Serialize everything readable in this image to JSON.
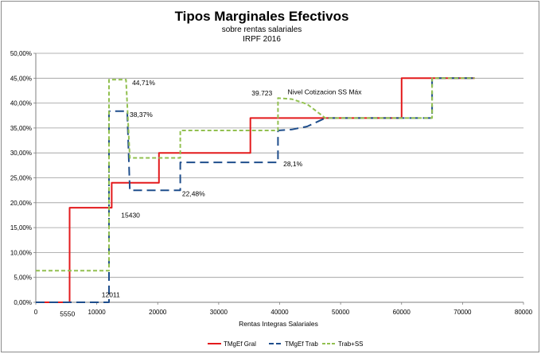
{
  "chart_data": {
    "type": "line",
    "title": "Tipos Marginales Efectivos",
    "subtitle_1": "sobre rentas salariales",
    "subtitle_2": "IRPF 2016",
    "xlabel": "Rentas Integras Salariales",
    "ylabel": "",
    "xlim": [
      0,
      80000
    ],
    "ylim": [
      0,
      0.5
    ],
    "x_ticks": [
      0,
      10000,
      20000,
      30000,
      40000,
      50000,
      60000,
      70000,
      80000
    ],
    "y_ticks": [
      {
        "v": 0.0,
        "label": "0,00%"
      },
      {
        "v": 0.05,
        "label": "5,00%"
      },
      {
        "v": 0.1,
        "label": "10,00%"
      },
      {
        "v": 0.15,
        "label": "15,00%"
      },
      {
        "v": 0.2,
        "label": "20,00%"
      },
      {
        "v": 0.25,
        "label": "25,00%"
      },
      {
        "v": 0.3,
        "label": "30,00%"
      },
      {
        "v": 0.35,
        "label": "35,00%"
      },
      {
        "v": 0.4,
        "label": "40,00%"
      },
      {
        "v": 0.45,
        "label": "45,00%"
      },
      {
        "v": 0.5,
        "label": "50,00%"
      }
    ],
    "grid": "horizontal",
    "legend_position": "bottom",
    "series": [
      {
        "name": "TMgEf Gral",
        "color": "#e31a1c",
        "dash": "solid",
        "points": [
          [
            0,
            0
          ],
          [
            5550,
            0
          ],
          [
            5550,
            0.19
          ],
          [
            12450,
            0.19
          ],
          [
            12450,
            0.24
          ],
          [
            20200,
            0.24
          ],
          [
            20200,
            0.3
          ],
          [
            35200,
            0.3
          ],
          [
            35200,
            0.37
          ],
          [
            60000,
            0.37
          ],
          [
            60000,
            0.45
          ],
          [
            72000,
            0.45
          ]
        ]
      },
      {
        "name": "TMgEf Trab",
        "color": "#1f4e8c",
        "dash": "longdash",
        "points": [
          [
            0,
            0
          ],
          [
            12011,
            0
          ],
          [
            12011,
            0.035
          ],
          [
            12011,
            0.3837
          ],
          [
            15000,
            0.3837
          ],
          [
            15430,
            0.2248
          ],
          [
            23700,
            0.2248
          ],
          [
            23700,
            0.281
          ],
          [
            39723,
            0.281
          ],
          [
            39723,
            0.345
          ],
          [
            42000,
            0.347
          ],
          [
            44500,
            0.353
          ],
          [
            47500,
            0.37
          ],
          [
            65000,
            0.37
          ],
          [
            65000,
            0.45
          ],
          [
            72000,
            0.45
          ]
        ]
      },
      {
        "name": "Trab+SS",
        "color": "#92c050",
        "dash": "shortdash",
        "points": [
          [
            0,
            0.0635
          ],
          [
            12011,
            0.0635
          ],
          [
            12011,
            0.4471
          ],
          [
            14800,
            0.4471
          ],
          [
            15430,
            0.29
          ],
          [
            23700,
            0.29
          ],
          [
            23700,
            0.345
          ],
          [
            39723,
            0.345
          ],
          [
            39723,
            0.41
          ],
          [
            42000,
            0.408
          ],
          [
            44500,
            0.398
          ],
          [
            47500,
            0.37
          ],
          [
            65000,
            0.37
          ],
          [
            65000,
            0.45
          ],
          [
            72000,
            0.45
          ]
        ]
      }
    ],
    "annotations": [
      {
        "text": "44,71%",
        "x": 15800,
        "y": 0.436
      },
      {
        "text": "38,37%",
        "x": 15400,
        "y": 0.372
      },
      {
        "text": "22,48%",
        "x": 24000,
        "y": 0.213
      },
      {
        "text": "15430",
        "x": 14000,
        "y": 0.17
      },
      {
        "text": "12011",
        "x": 10800,
        "y": 0.01
      },
      {
        "text": "5550",
        "x": 3950,
        "y": -0.028
      },
      {
        "text": "28,1%",
        "x": 40600,
        "y": 0.273
      },
      {
        "text": "39.723",
        "x": 35400,
        "y": 0.415
      },
      {
        "text": "Nivel Cotizacion SS Máx",
        "x": 41300,
        "y": 0.418
      }
    ]
  }
}
